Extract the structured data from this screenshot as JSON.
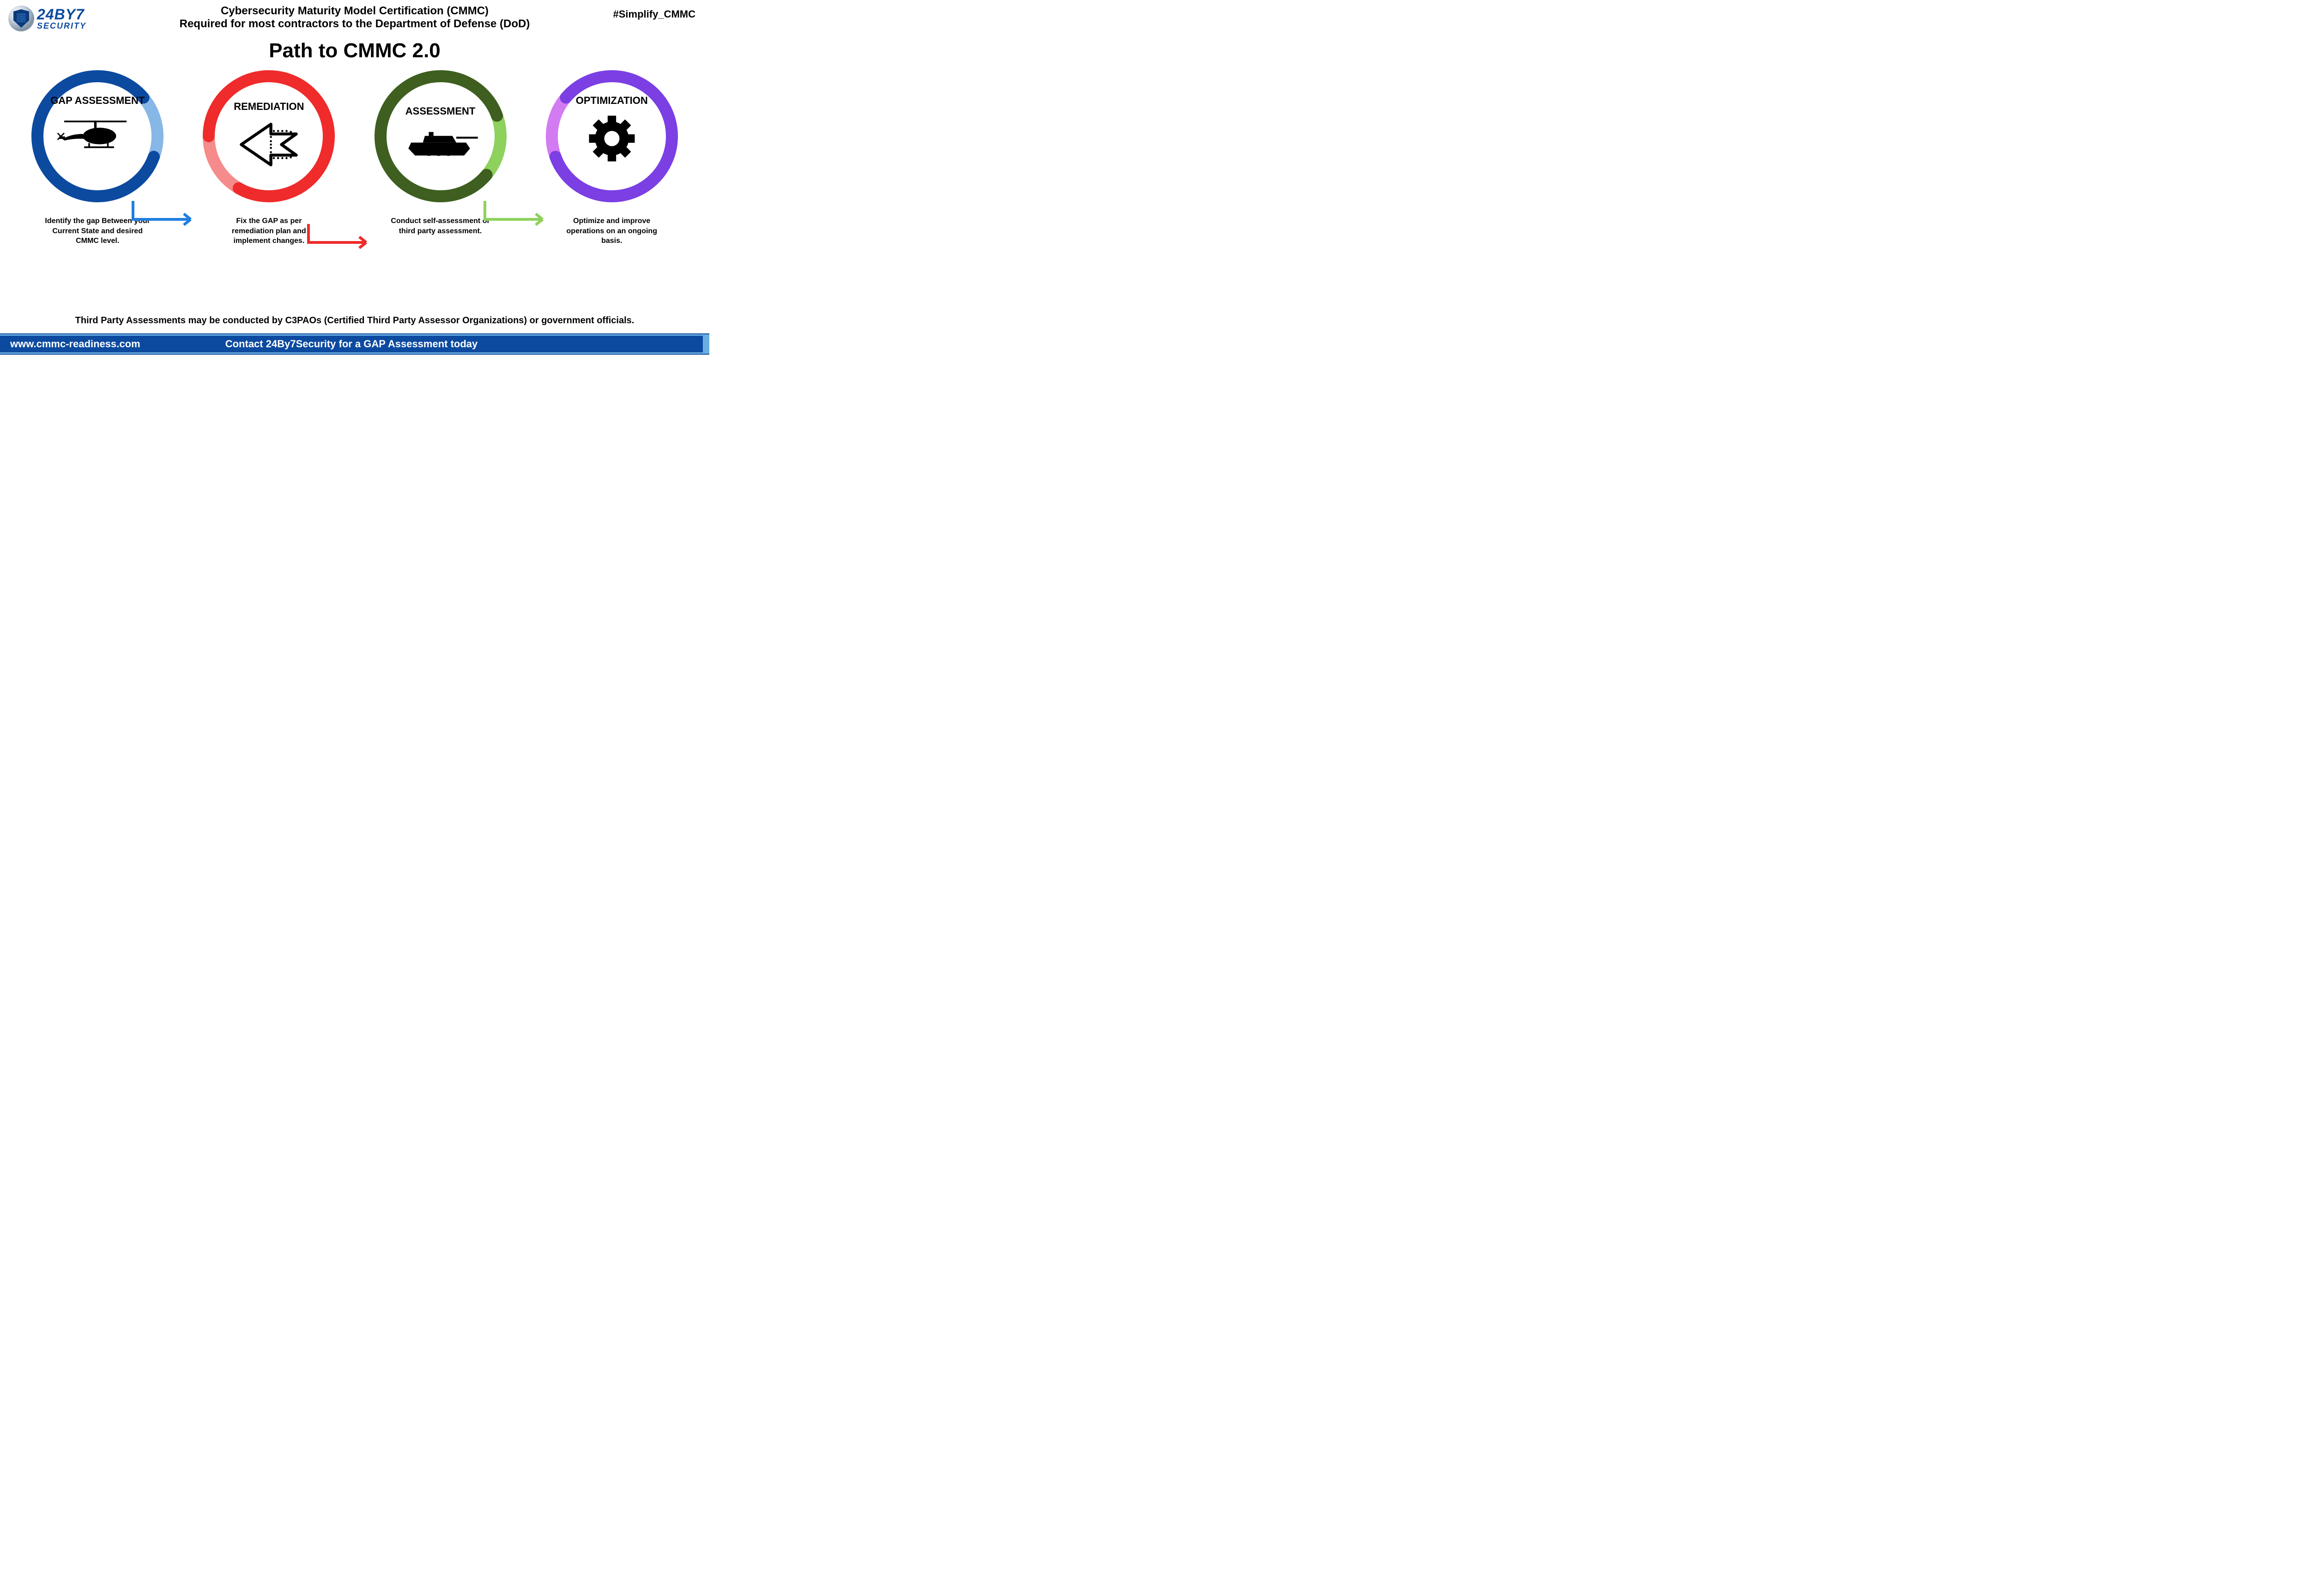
{
  "logo": {
    "top_text": "24BY7",
    "bottom_text": "SECURITY",
    "brand_color": "#0c4aa0"
  },
  "header": {
    "line1": "Cybersecurity Maturity Model Certification (CMMC)",
    "line2": "Required for most contractors to the Department of Defense (DoD)",
    "fontsize": 24
  },
  "hashtag": {
    "text": "#Simplify_CMMC",
    "fontsize": 22
  },
  "title": {
    "text": "Path to CMMC 2.0",
    "fontsize": 44
  },
  "ring_stroke_width": 26,
  "steps": [
    {
      "label": "GAP ASSESSMENT",
      "label_fontsize": 22,
      "desc": "Identify the gap Between your Current State and desired CMMC level.",
      "desc_fontsize": 16,
      "ring_main_color": "#0c4aa0",
      "ring_light_color": "#87b7e6",
      "icon": "helicopter",
      "label_position": "top",
      "arc_rotation": -40
    },
    {
      "label": "REMEDIATION",
      "label_fontsize": 22,
      "desc": "Fix the GAP as per remediation plan and implement changes.",
      "desc_fontsize": 16,
      "ring_main_color": "#ef2b2b",
      "ring_light_color": "#f58b8b",
      "icon": "arrow-left",
      "label_position": "center",
      "arc_rotation": 120
    },
    {
      "label": "ASSESSMENT",
      "label_fontsize": 22,
      "desc": "Conduct self-assessment or third party assessment.",
      "desc_fontsize": 16,
      "ring_main_color": "#3e5f1f",
      "ring_light_color": "#8ed15d",
      "icon": "tank",
      "label_position": "center",
      "arc_rotation": -20
    },
    {
      "label": "OPTIMIZATION",
      "label_fontsize": 22,
      "desc": "Optimize and improve operations on an ongoing basis.",
      "desc_fontsize": 16,
      "ring_main_color": "#7b3fe4",
      "ring_light_color": "#d37bf2",
      "icon": "gear",
      "label_position": "top",
      "arc_rotation": 160
    }
  ],
  "connectors": [
    {
      "color": "#1f7fe0"
    },
    {
      "color": "#ef2b2b"
    },
    {
      "color": "#8ed15d"
    }
  ],
  "footnote": {
    "text": "Third Party Assessments may be conducted by C3PAOs (Certified Third Party Assessor Organizations) or government officials.",
    "fontsize": 20
  },
  "footer": {
    "url": "www.cmmc-readiness.com",
    "cta": "Contact 24By7Security for a GAP Assessment today",
    "fontsize": 22,
    "outer_bg": "#6aaee0",
    "inner_bg": "#0c4aa0",
    "text_color": "#ffffff"
  }
}
